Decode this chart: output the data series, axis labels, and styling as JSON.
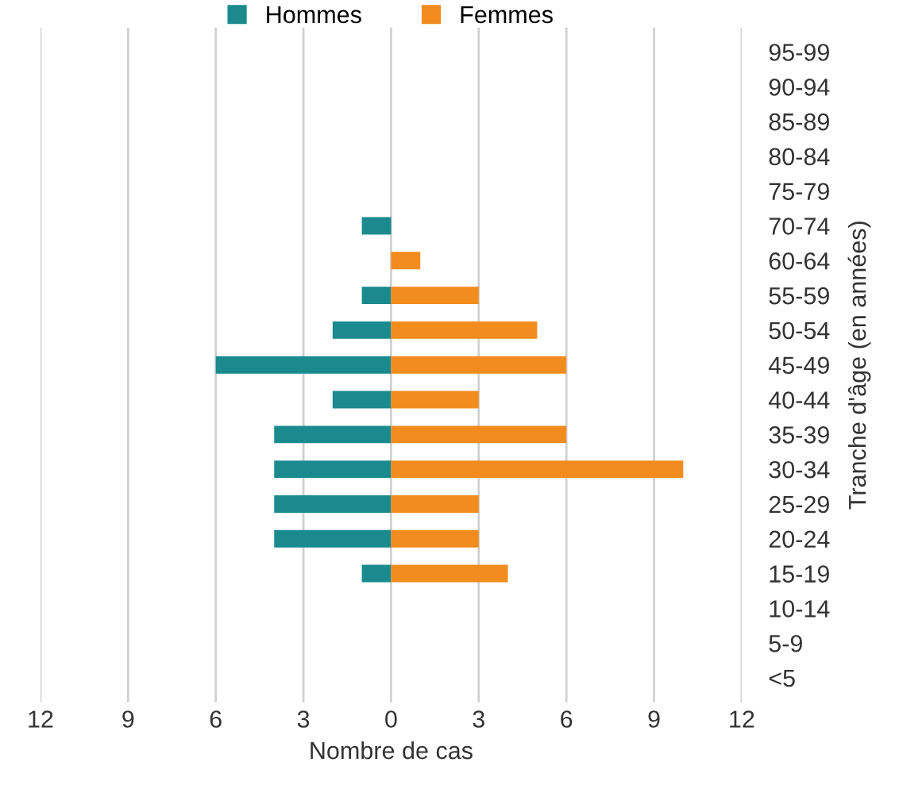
{
  "chart_data": {
    "type": "bar",
    "orientation": "horizontal",
    "categories": [
      "95-99",
      "90-94",
      "85-89",
      "80-84",
      "75-79",
      "70-74",
      "60-64",
      "55-59",
      "50-54",
      "45-49",
      "40-44",
      "35-39",
      "30-34",
      "25-29",
      "20-24",
      "15-19",
      "10-14",
      "5-9",
      "<5"
    ],
    "series": [
      {
        "name": "Hommes",
        "color": "#1a8a8f",
        "values": [
          null,
          null,
          null,
          null,
          null,
          -1,
          null,
          -1,
          -2,
          -6,
          -2,
          -4,
          -4,
          -4,
          -4,
          -1,
          null,
          null,
          null
        ]
      },
      {
        "name": "Femmes",
        "color": "#f28c1e",
        "values": [
          null,
          null,
          null,
          null,
          null,
          null,
          1,
          3,
          5,
          6,
          3,
          6,
          10,
          3,
          3,
          4,
          null,
          null,
          null
        ]
      }
    ],
    "xlim": [
      -12,
      12
    ],
    "xticks": [
      {
        "value": -12,
        "label": "12"
      },
      {
        "value": -9,
        "label": "9"
      },
      {
        "value": -6,
        "label": "6"
      },
      {
        "value": -3,
        "label": "3"
      },
      0,
      3,
      6,
      9,
      12
    ],
    "xlabel": "Nombre de cas",
    "ylabel": "Tranche d'âge (en années)",
    "grid": "x",
    "legend": "top"
  }
}
